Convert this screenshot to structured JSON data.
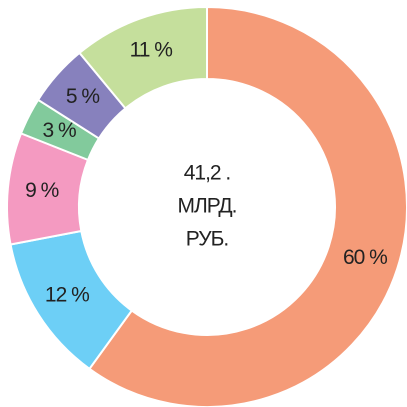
{
  "chart_data": {
    "type": "pie",
    "values": [
      60,
      12,
      9,
      3,
      5,
      11
    ],
    "value_labels": [
      "60 %",
      "12 %",
      "9 %",
      "3 %",
      "5 %",
      "11 %"
    ],
    "colors": [
      "#f59b78",
      "#6dcff6",
      "#f49ac1",
      "#82ca9c",
      "#8781bd",
      "#c5df9c"
    ],
    "center_label": [
      "41,2 .",
      "МЛРД.",
      "РУБ."
    ]
  }
}
